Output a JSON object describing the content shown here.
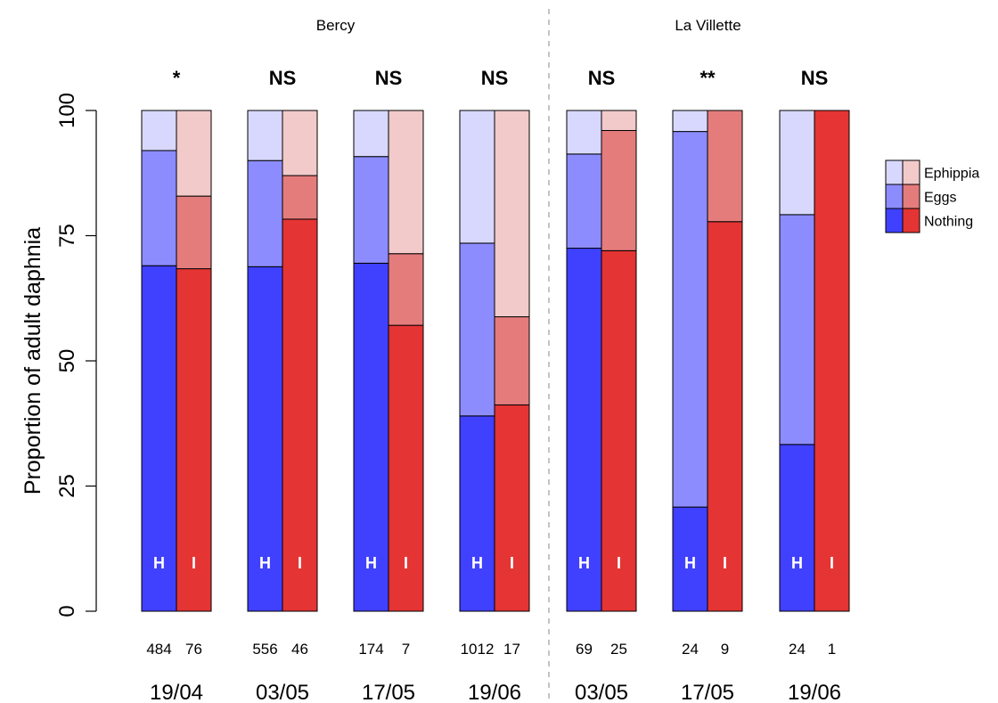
{
  "chart_data": {
    "type": "bar",
    "stacked": true,
    "ylabel": "Proportion of adult daphnia",
    "ylim": [
      0,
      100
    ],
    "yticks": [
      "0",
      "25",
      "50",
      "75",
      "100"
    ],
    "sites": [
      {
        "name": "Bercy",
        "group_count": 4
      },
      {
        "name": "La Villette",
        "group_count": 3
      }
    ],
    "legend": {
      "position": "right",
      "entries": [
        "Ephippia",
        "Eggs",
        "Nothing"
      ]
    },
    "colors": {
      "H": {
        "Nothing": "#4040ff",
        "Eggs": "#8c8cff",
        "Ephippia": "#d8d8ff"
      },
      "I": {
        "Nothing": "#e53434",
        "Eggs": "#e57c7c",
        "Ephippia": "#f2caca"
      }
    },
    "groups": [
      {
        "site": "Bercy",
        "date": "19/04",
        "significance": "*",
        "bars": [
          {
            "label": "H",
            "n": "484",
            "nothing": 69,
            "eggs": 23,
            "ephippia": 8
          },
          {
            "label": "I",
            "n": "76",
            "nothing": 68.4,
            "eggs": 14.5,
            "ephippia": 17.1
          }
        ]
      },
      {
        "site": "Bercy",
        "date": "03/05",
        "significance": "NS",
        "bars": [
          {
            "label": "H",
            "n": "556",
            "nothing": 68.8,
            "eggs": 21.2,
            "ephippia": 10
          },
          {
            "label": "I",
            "n": "46",
            "nothing": 78.3,
            "eggs": 8.7,
            "ephippia": 13
          }
        ]
      },
      {
        "site": "Bercy",
        "date": "17/05",
        "significance": "NS",
        "bars": [
          {
            "label": "H",
            "n": "174",
            "nothing": 69.5,
            "eggs": 21.3,
            "ephippia": 9.2
          },
          {
            "label": "I",
            "n": "7",
            "nothing": 57.1,
            "eggs": 14.3,
            "ephippia": 28.6
          }
        ]
      },
      {
        "site": "Bercy",
        "date": "19/06",
        "significance": "NS",
        "bars": [
          {
            "label": "H",
            "n": "1012",
            "nothing": 39,
            "eggs": 34.5,
            "ephippia": 26.5
          },
          {
            "label": "I",
            "n": "17",
            "nothing": 41.2,
            "eggs": 17.6,
            "ephippia": 41.2
          }
        ]
      },
      {
        "site": "La Villette",
        "date": "03/05",
        "significance": "NS",
        "bars": [
          {
            "label": "H",
            "n": "69",
            "nothing": 72.5,
            "eggs": 18.8,
            "ephippia": 8.7
          },
          {
            "label": "I",
            "n": "25",
            "nothing": 72,
            "eggs": 24,
            "ephippia": 4
          }
        ]
      },
      {
        "site": "La Villette",
        "date": "17/05",
        "significance": "**",
        "bars": [
          {
            "label": "H",
            "n": "24",
            "nothing": 20.8,
            "eggs": 75,
            "ephippia": 4.2
          },
          {
            "label": "I",
            "n": "9",
            "nothing": 77.8,
            "eggs": 22.2,
            "ephippia": 0
          }
        ]
      },
      {
        "site": "La Villette",
        "date": "19/06",
        "significance": "NS",
        "bars": [
          {
            "label": "H",
            "n": "24",
            "nothing": 33.3,
            "eggs": 45.9,
            "ephippia": 20.8
          },
          {
            "label": "I",
            "n": "1",
            "nothing": 100,
            "eggs": 0,
            "ephippia": 0
          }
        ]
      }
    ]
  }
}
